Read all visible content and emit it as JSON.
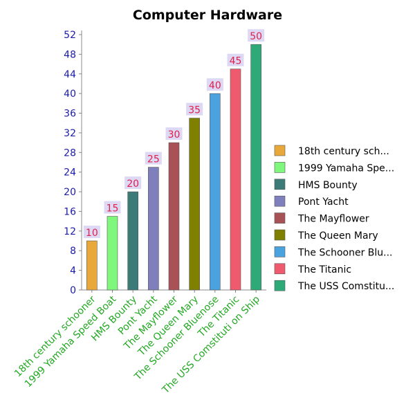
{
  "chart_data": {
    "type": "bar",
    "title": "Computer Hardware",
    "categories": [
      "18th century schooner",
      "1999 Yamaha Speed Boat",
      "HMS Bounty",
      "Pont Yacht",
      "The Mayflower",
      "The Queen Mary",
      "The Schooner Bluenose",
      "The Titanic",
      "The USS Comstituti on Ship"
    ],
    "values": [
      10,
      15,
      20,
      25,
      30,
      35,
      40,
      45,
      50
    ],
    "ylim": [
      0,
      52
    ],
    "yticks": [
      0,
      4,
      8,
      12,
      16,
      20,
      24,
      28,
      32,
      36,
      40,
      44,
      48,
      52
    ],
    "legend_placement": "right",
    "legend_labels": [
      "18th century sch...",
      "1999 Yamaha Spe...",
      "HMS Bounty",
      "Pont Yacht",
      "The Mayflower",
      "The Queen Mary",
      "The Schooner Blu...",
      "The Titanic",
      "The USS Comstitu..."
    ],
    "colors": [
      "#e8a93a",
      "#7ef77c",
      "#3b7b78",
      "#7f7fbd",
      "#a85157",
      "#808000",
      "#4aa3df",
      "#f05a6e",
      "#2eaa78"
    ],
    "grid": false
  },
  "styles": {
    "ytick_color": "#1a1aa8",
    "xtick_color": "#22a822",
    "data_label_color": "#e0204a",
    "data_label_bg": "#ddd8f4"
  }
}
